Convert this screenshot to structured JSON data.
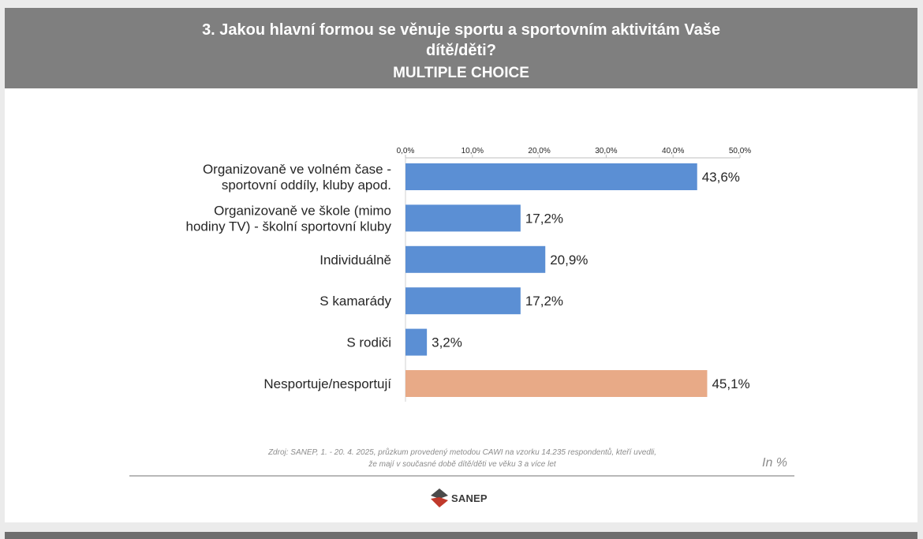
{
  "header": {
    "question_line1": "3. Jakou hlavní formou se věnuje sportu a sportovním aktivitám Vaše",
    "question_line2": "dítě/děti?",
    "subtitle": "MULTIPLE CHOICE"
  },
  "chart_data": {
    "type": "bar",
    "orientation": "horizontal",
    "categories": [
      [
        "Organizovaně ve volném čase -",
        "sportovní oddíly, kluby apod."
      ],
      [
        "Organizovaně ve škole (mimo",
        "hodiny TV) -  školní sportovní kluby"
      ],
      [
        "Individuálně"
      ],
      [
        "S kamarády"
      ],
      [
        "S rodiči"
      ],
      [
        "Nesportuje/nesportují"
      ]
    ],
    "values": [
      43.6,
      17.2,
      20.9,
      17.2,
      3.2,
      45.1
    ],
    "value_labels": [
      "43,6%",
      "17,2%",
      "20,9%",
      "17,2%",
      "3,2%",
      "45,1%"
    ],
    "bar_colors": [
      "#5b8fd4",
      "#5b8fd4",
      "#5b8fd4",
      "#5b8fd4",
      "#5b8fd4",
      "#e8aa87"
    ],
    "xlim": [
      0,
      50
    ],
    "xticks": [
      0,
      10,
      20,
      30,
      40,
      50
    ],
    "xtick_labels": [
      "0,0%",
      "10,0%",
      "20,0%",
      "30,0%",
      "40,0%",
      "50,0%"
    ],
    "axis_position": "top",
    "grid": false,
    "legend": "none"
  },
  "footer": {
    "source_line1": "Zdroj: SANEP, 1. - 20. 4. 2025, průzkum provedený metodou CAWI na vzorku 14.235 respondentů, kteří uvedli,",
    "source_line2": "že mají v současné době dítě/děti ve věku 3 a více let",
    "unit_note": "In %",
    "logo_text": "SANEP"
  },
  "colors": {
    "header_bg": "#7f7f7f",
    "bar_primary": "#5b8fd4",
    "bar_highlight": "#e8aa87"
  }
}
